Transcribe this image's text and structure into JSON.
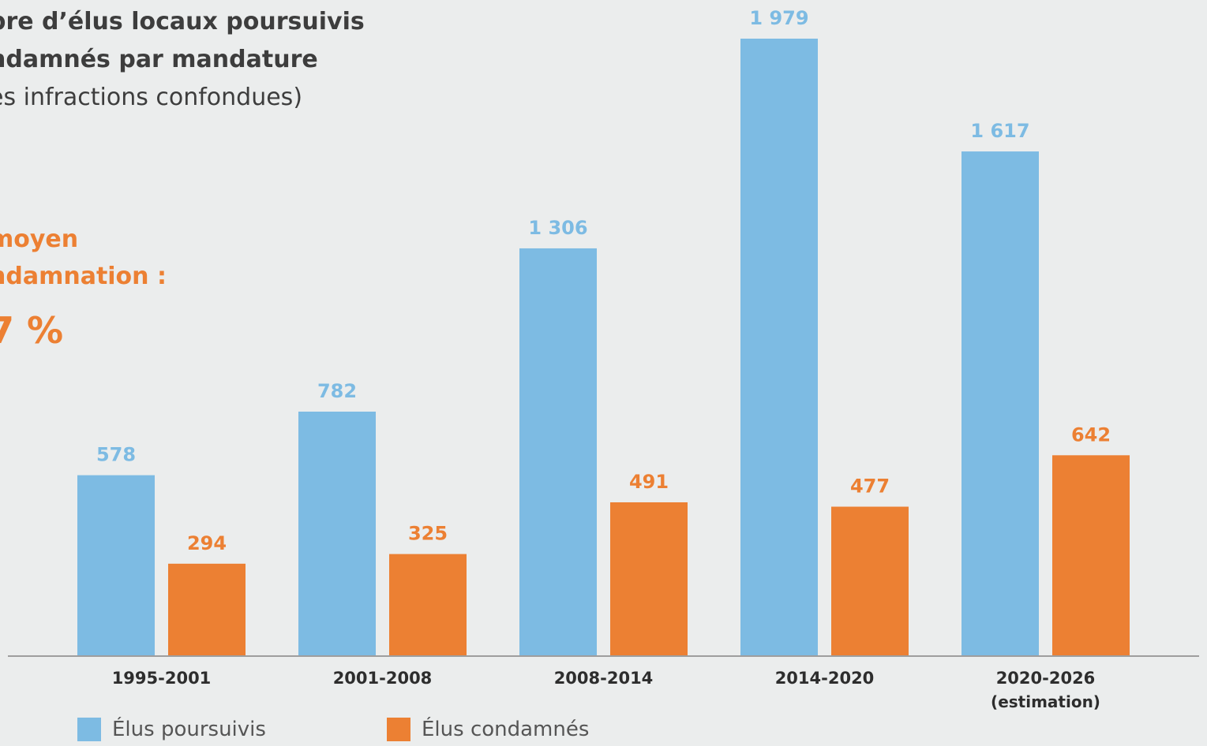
{
  "header": {
    "title_line1": "bre d’élus locaux poursuivis",
    "title_line2": "ndamnés par mandature",
    "title_line3": "es infractions confondues)"
  },
  "rate": {
    "line1": "moyen",
    "line2": "ndamnation :",
    "value": "7 %"
  },
  "colors": {
    "poursuivis": "#7dbbe3",
    "condamnes": "#ec8033",
    "axis": "#9e9e9e",
    "tick_text": "#2d2d2d"
  },
  "chart_data": {
    "type": "bar",
    "categories": [
      "1995-2001",
      "2001-2008",
      "2008-2014",
      "2014-2020",
      "2020-2026\n(estimation)"
    ],
    "series": [
      {
        "name": "Élus poursuivis",
        "values": [
          578,
          782,
          1306,
          1979,
          1617
        ],
        "labels": [
          "578",
          "782",
          "1 306",
          "1 979",
          "1 617"
        ]
      },
      {
        "name": "Élus condamnés",
        "values": [
          294,
          325,
          491,
          477,
          642
        ],
        "labels": [
          "294",
          "325",
          "491",
          "477",
          "642"
        ]
      }
    ],
    "ylim": [
      0,
      1979
    ],
    "grid": false,
    "legend": "bottom-left"
  }
}
